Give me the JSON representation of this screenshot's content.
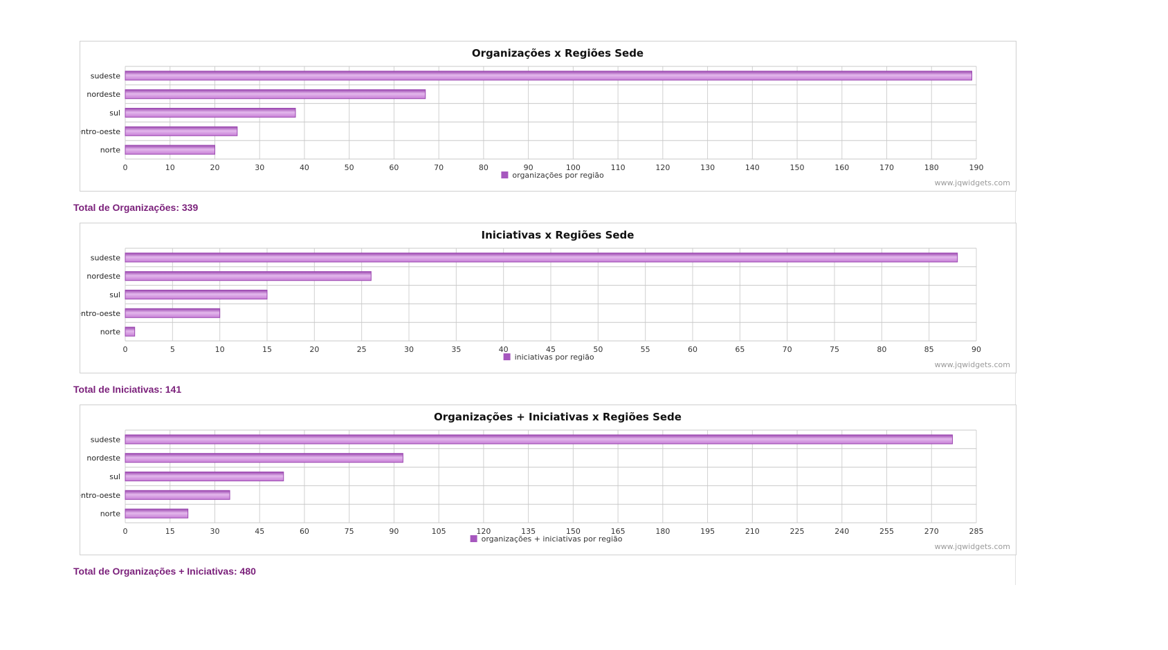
{
  "charts": [
    {
      "title": "Organizações x Regiões Sede",
      "legend": "organizações por região",
      "watermark": "www.jqwidgets.com",
      "total_text": "Total de Organizações: 339"
    },
    {
      "title": "Iniciativas x Regiões Sede",
      "legend": "iniciativas por região",
      "watermark": "www.jqwidgets.com",
      "total_text": "Total de Iniciativas: 141"
    },
    {
      "title": "Organizações + Iniciativas x Regiões Sede",
      "legend": "organizações + iniciativas por região",
      "watermark": "www.jqwidgets.com",
      "total_text": "Total de Organizações + Iniciativas: 480"
    }
  ],
  "colors": {
    "bar": "#c77fd6",
    "bar_dark": "#9b48b0",
    "bar_light": "#e3b8ec",
    "legend": "#a657be",
    "total": "#7a1f7a"
  },
  "chart_data": [
    {
      "type": "bar",
      "orientation": "horizontal",
      "title": "Organizações x Regiões Sede",
      "categories": [
        "sudeste",
        "nordeste",
        "sul",
        "centro-oeste",
        "norte"
      ],
      "series": [
        {
          "name": "organizações por região",
          "values": [
            189,
            67,
            38,
            25,
            20
          ]
        }
      ],
      "xlim": [
        0,
        190
      ],
      "ticks": [
        0,
        10,
        20,
        30,
        40,
        50,
        60,
        70,
        80,
        90,
        100,
        110,
        120,
        130,
        140,
        150,
        160,
        170,
        180,
        190
      ],
      "grid": true,
      "legend_position": "bottom"
    },
    {
      "type": "bar",
      "orientation": "horizontal",
      "title": "Iniciativas x Regiões Sede",
      "categories": [
        "sudeste",
        "nordeste",
        "sul",
        "centro-oeste",
        "norte"
      ],
      "series": [
        {
          "name": "iniciativas por região",
          "values": [
            88,
            26,
            15,
            10,
            1
          ]
        }
      ],
      "xlim": [
        0,
        90
      ],
      "ticks": [
        0,
        5,
        10,
        15,
        20,
        25,
        30,
        35,
        40,
        45,
        50,
        55,
        60,
        65,
        70,
        75,
        80,
        85,
        90
      ],
      "grid": true,
      "legend_position": "bottom"
    },
    {
      "type": "bar",
      "orientation": "horizontal",
      "title": "Organizações + Iniciativas x Regiões Sede",
      "categories": [
        "sudeste",
        "nordeste",
        "sul",
        "centro-oeste",
        "norte"
      ],
      "series": [
        {
          "name": "organizações + iniciativas por região",
          "values": [
            277,
            93,
            53,
            35,
            21
          ]
        }
      ],
      "xlim": [
        0,
        285
      ],
      "ticks": [
        0,
        15,
        30,
        45,
        60,
        75,
        90,
        105,
        120,
        135,
        150,
        165,
        180,
        195,
        210,
        225,
        240,
        255,
        270,
        285
      ],
      "grid": true,
      "legend_position": "bottom"
    }
  ]
}
